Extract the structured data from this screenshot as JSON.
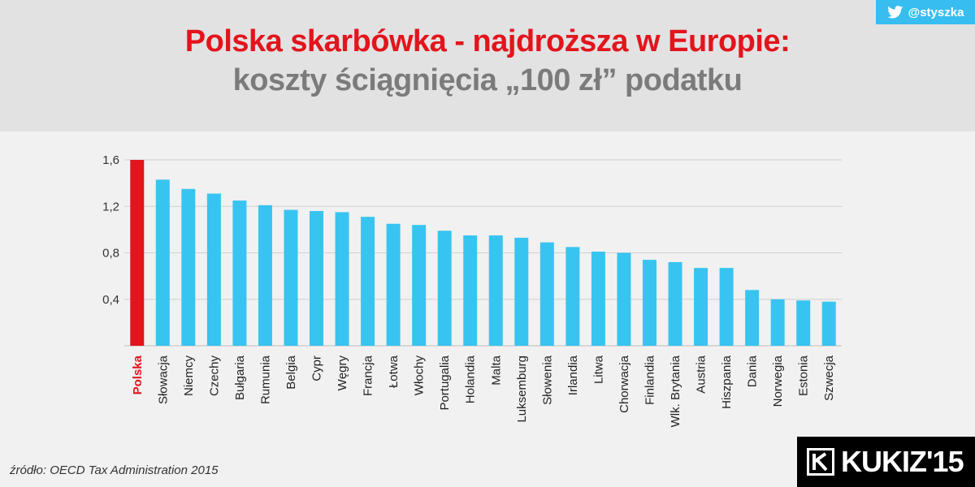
{
  "header": {
    "title_line1": "Polska skarbówka - najdroższa w Europie:",
    "title_line2": "koszty ściągnięcia „100 zł” podatku"
  },
  "twitter": {
    "handle": "@styszka",
    "icon": "twitter-bird-icon"
  },
  "footer": {
    "source": "źródło: OECD Tax Administration 2015",
    "logo_text": "KUKIZ'15",
    "logo_icon": "kukiz-k-mark-icon"
  },
  "colors": {
    "highlight": "#e3141c",
    "bar": "#38c4f0",
    "title_secondary": "#7b7b7b",
    "twitter": "#38bdf0"
  },
  "chart_data": {
    "type": "bar",
    "title": "",
    "xlabel": "",
    "ylabel": "",
    "ylim": [
      0,
      1.6
    ],
    "yticks": [
      0.4,
      0.8,
      1.2,
      1.6
    ],
    "ytick_labels": [
      "0,4",
      "0,8",
      "1,2",
      "1,6"
    ],
    "grid": true,
    "highlight_category": "Polska",
    "categories": [
      "Polska",
      "Słowacja",
      "Niemcy",
      "Czechy",
      "Bułgaria",
      "Rumunia",
      "Belgia",
      "Cypr",
      "Węgry",
      "Francja",
      "Łotwa",
      "Włochy",
      "Portugalia",
      "Holandia",
      "Malta",
      "Luksemburg",
      "Słowenia",
      "Irlandia",
      "Litwa",
      "Chorwacja",
      "Finlandia",
      "Wlk. Brytania",
      "Austria",
      "Hiszpania",
      "Dania",
      "Norwegia",
      "Estonia",
      "Szwecja"
    ],
    "values": [
      1.6,
      1.43,
      1.35,
      1.31,
      1.25,
      1.21,
      1.17,
      1.16,
      1.15,
      1.11,
      1.05,
      1.04,
      0.99,
      0.95,
      0.95,
      0.93,
      0.89,
      0.85,
      0.81,
      0.8,
      0.74,
      0.72,
      0.67,
      0.67,
      0.48,
      0.4,
      0.39,
      0.38
    ]
  }
}
